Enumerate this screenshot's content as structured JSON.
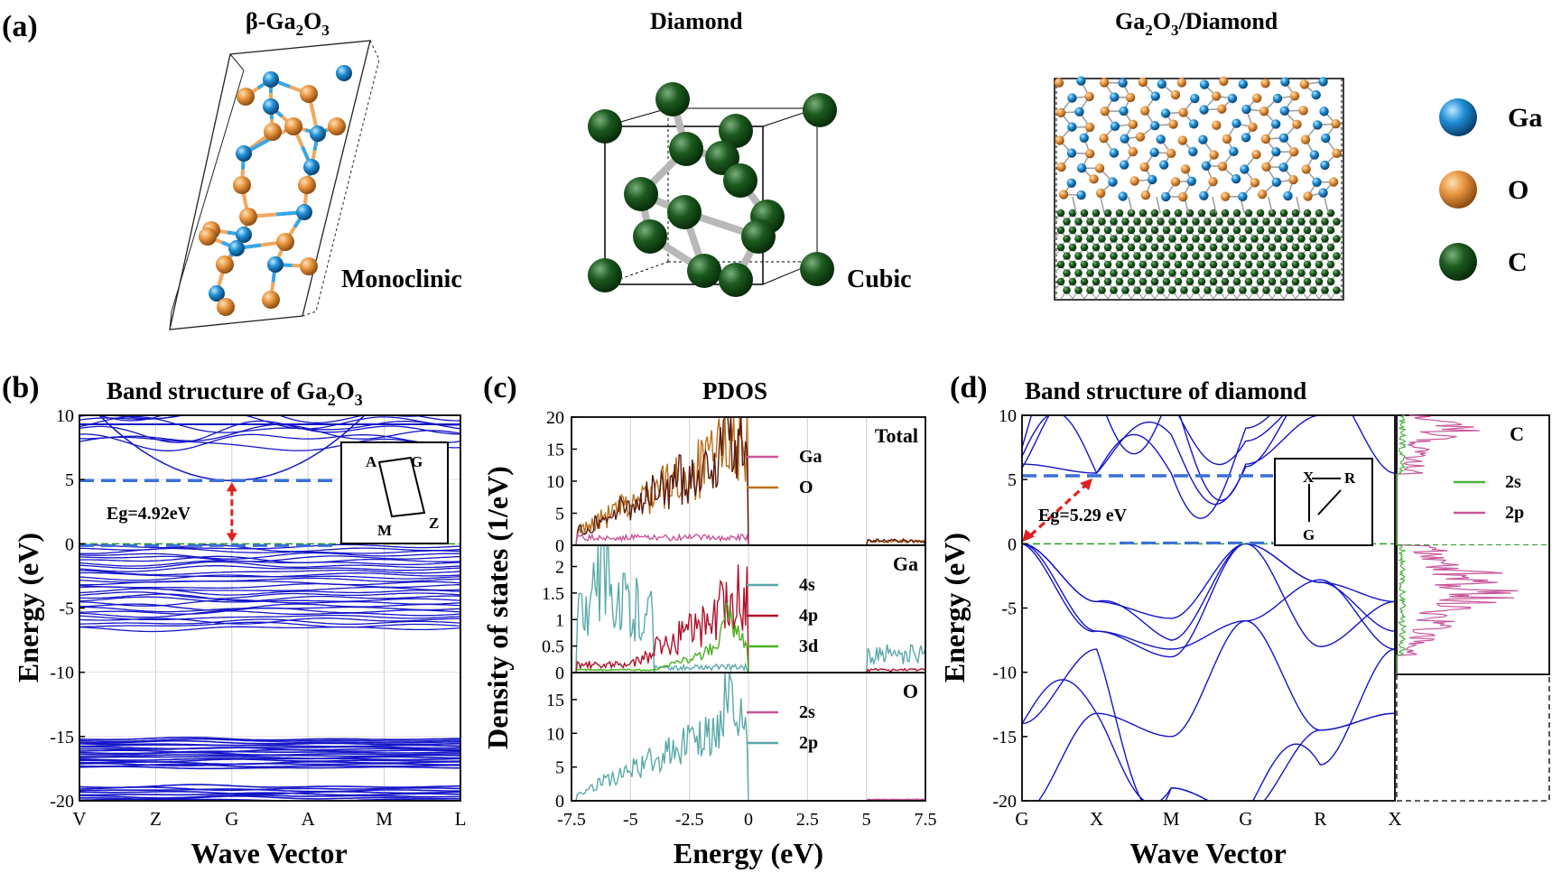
{
  "panel_a": {
    "label": "(a)",
    "ga2o3": {
      "title_main": "β-Ga",
      "title_sub1": "2",
      "title_mid": "O",
      "title_sub2": "3",
      "caption": "Monoclinic"
    },
    "diamond": {
      "title": "Diamond",
      "caption": "Cubic"
    },
    "interface": {
      "title": "Ga2O3/Diamond"
    },
    "legend": [
      {
        "label": "Ga",
        "color": "#1f8fd6"
      },
      {
        "label": "O",
        "color": "#e8953f"
      },
      {
        "label": "C",
        "color": "#0f4a12"
      }
    ]
  },
  "chart_data": [
    {
      "panel": "(b)",
      "type": "line",
      "title_main": "Band structure of Ga",
      "title_sub1": "2",
      "title_mid": "O",
      "title_sub2": "3",
      "ylabel": "Energy (eV)",
      "xlabel": "Wave Vector",
      "x_ticks": [
        "V",
        "Z",
        "G",
        "A",
        "M",
        "L"
      ],
      "y_ticks": [
        10,
        5,
        0,
        -5,
        -10,
        -15,
        -20
      ],
      "ylim": [
        -20,
        10
      ],
      "gap_annotation": "Eg=4.92eV",
      "cbm": 4.92,
      "vbm": 0,
      "inset_labels": [
        "A",
        "G",
        "M",
        "Z"
      ],
      "line_color": "#1515c8",
      "grid": true
    },
    {
      "panel": "(c)",
      "type": "line",
      "title": "PDOS",
      "ylabel": "Density of states (1/eV)",
      "xlabel": "Energy (eV)",
      "x_ticks": [
        "-7.5",
        "-5",
        "-2.5",
        "0",
        "2.5",
        "5",
        "7.5"
      ],
      "xlim": [
        -7.5,
        7.5
      ],
      "subplots": [
        {
          "name": "Total",
          "y_ticks": [
            0,
            5,
            10,
            15,
            20
          ],
          "ylim": [
            0,
            20
          ],
          "series": [
            {
              "name": "Ga",
              "color": "#c8559a"
            },
            {
              "name": "O",
              "color": "#b8701a"
            }
          ]
        },
        {
          "name": "Ga",
          "y_ticks": [
            0,
            0.5,
            1,
            1.5,
            2
          ],
          "ylim": [
            0,
            2.4
          ],
          "series": [
            {
              "name": "4s",
              "color": "#5aa9a9"
            },
            {
              "name": "4p",
              "color": "#b0102a"
            },
            {
              "name": "3d",
              "color": "#4ab020"
            }
          ]
        },
        {
          "name": "O",
          "y_ticks": [
            0,
            5,
            10,
            15
          ],
          "ylim": [
            0,
            19
          ],
          "series": [
            {
              "name": "2s",
              "color": "#c8559a"
            },
            {
              "name": "2p",
              "color": "#5aa9a9"
            }
          ]
        }
      ]
    },
    {
      "panel": "(d)",
      "type": "line",
      "title": "Band structure of diamond",
      "ylabel": "Energy (eV)",
      "xlabel": "Wave Vector",
      "x_ticks": [
        "G",
        "X",
        "M",
        "G",
        "R",
        "X"
      ],
      "y_ticks": [
        10,
        5,
        0,
        -5,
        -10,
        -15,
        -20
      ],
      "ylim": [
        -20,
        10
      ],
      "gap_annotation": "Eg=5.29 eV",
      "cbm": 5.29,
      "vbm": 0,
      "inset_labels": [
        "X",
        "R",
        "G"
      ],
      "dos_inset": {
        "name": "C",
        "series": [
          {
            "name": "2s",
            "color": "#4ab040"
          },
          {
            "name": "2p",
            "color": "#c8559a"
          }
        ]
      },
      "line_color": "#1515c8"
    }
  ]
}
